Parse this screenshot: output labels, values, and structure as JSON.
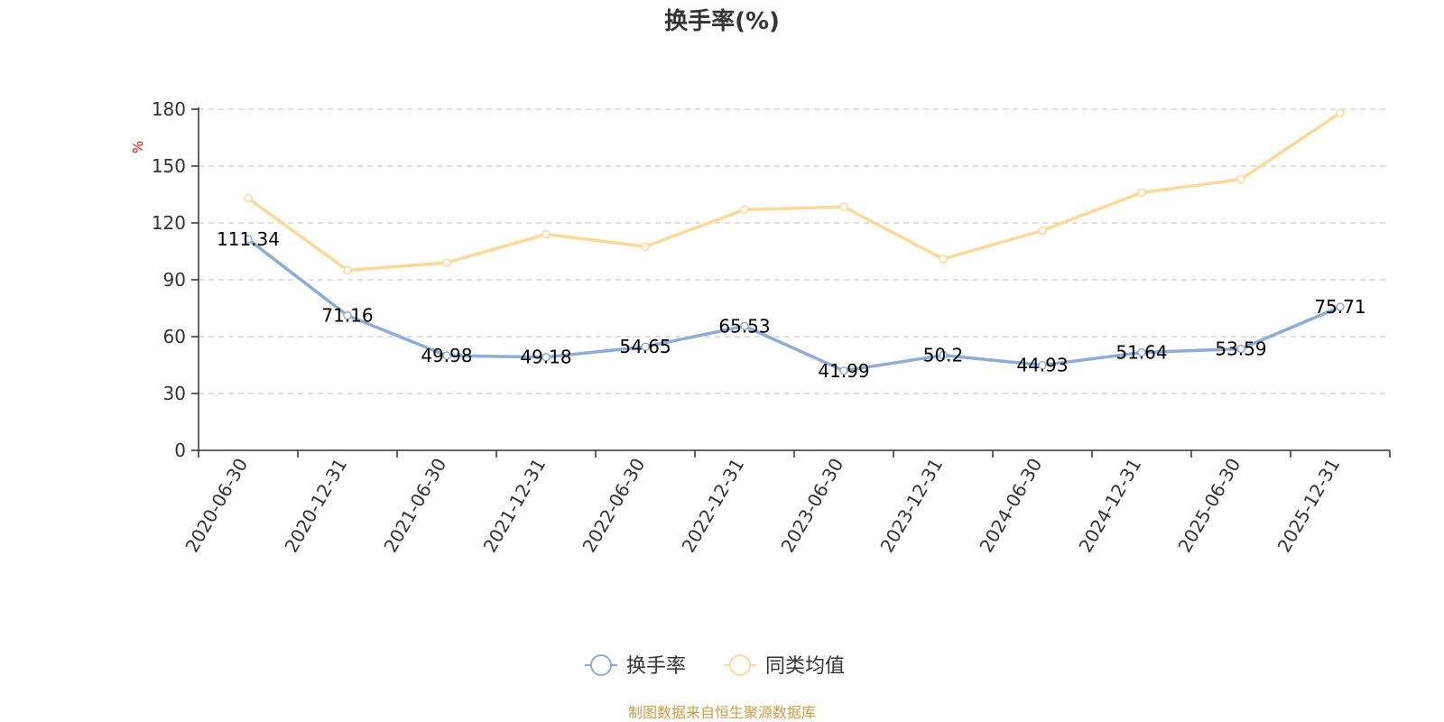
{
  "chart_data": {
    "type": "line",
    "title": "换手率(%)",
    "ylabel": "%",
    "xlabel": "",
    "ylim": [
      0,
      180
    ],
    "yticks": [
      0,
      30,
      60,
      90,
      120,
      150,
      180
    ],
    "grid": true,
    "legend_position": "bottom-center",
    "categories": [
      "2020-06-30",
      "2020-12-31",
      "2021-06-30",
      "2021-12-31",
      "2022-06-30",
      "2022-12-31",
      "2023-06-30",
      "2023-12-31",
      "2024-06-30",
      "2024-12-31",
      "2025-06-30",
      "2025-12-31"
    ],
    "series": [
      {
        "name": "换手率",
        "color": "#8eacd8",
        "values": [
          111.34,
          71.16,
          49.98,
          49.18,
          54.65,
          65.53,
          41.99,
          50.2,
          44.93,
          51.64,
          53.59,
          75.71
        ],
        "labels": [
          "111.34",
          "71.16",
          "49.98",
          "49.18",
          "54.65",
          "65.53",
          "41.99",
          "50.2",
          "44.93",
          "51.64",
          "53.59",
          "75.71"
        ]
      },
      {
        "name": "同类均值",
        "color": "#fbd998",
        "values": [
          133,
          95,
          99,
          114,
          107.5,
          127,
          128.5,
          101,
          116,
          136,
          143,
          178
        ]
      }
    ]
  },
  "colors": {
    "unit_label": "#ff0000",
    "source_text": "#c8a04a"
  },
  "source": "制图数据来自恒生聚源数据库"
}
